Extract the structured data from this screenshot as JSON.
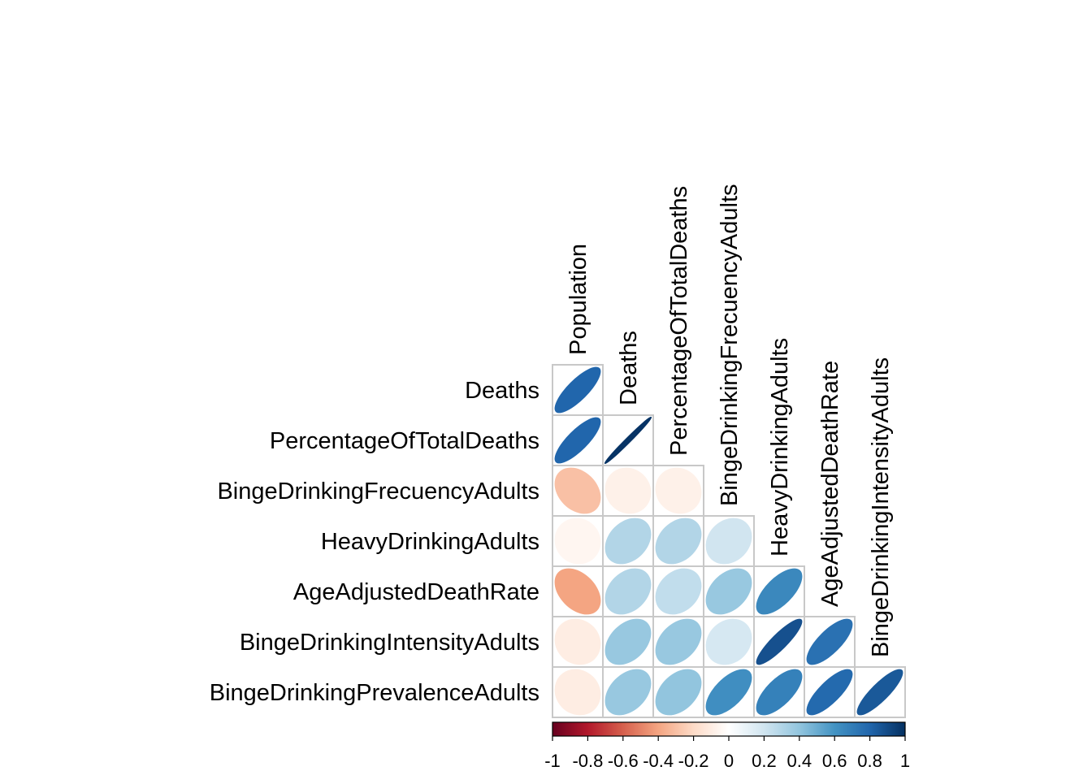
{
  "chart_data": {
    "type": "heatmap",
    "style": "correlation-ellipse-lower-triangle",
    "variables": [
      "Population",
      "Deaths",
      "PercentageOfTotalDeaths",
      "BingeDrinkingFrecuencyAdults",
      "HeavyDrinkingAdults",
      "AgeAdjustedDeathRate",
      "BingeDrinkingIntensityAdults",
      "BingeDrinkingPrevalenceAdults"
    ],
    "row_labels": [
      "Deaths",
      "PercentageOfTotalDeaths",
      "BingeDrinkingFrecuencyAdults",
      "HeavyDrinkingAdults",
      "AgeAdjustedDeathRate",
      "BingeDrinkingIntensityAdults",
      "BingeDrinkingPrevalenceAdults"
    ],
    "col_labels": [
      "Population",
      "Deaths",
      "PercentageOfTotalDeaths",
      "BingeDrinkingFrecuencyAdults",
      "HeavyDrinkingAdults",
      "AgeAdjustedDeathRate",
      "BingeDrinkingIntensityAdults"
    ],
    "matrix": [
      [
        0.8
      ],
      [
        0.8,
        0.99
      ],
      [
        -0.3,
        -0.08,
        -0.08
      ],
      [
        -0.05,
        0.3,
        0.3,
        0.2
      ],
      [
        -0.4,
        0.3,
        0.25,
        0.38,
        0.65
      ],
      [
        -0.1,
        0.38,
        0.38,
        0.18,
        0.88,
        0.75
      ],
      [
        -0.1,
        0.38,
        0.4,
        0.62,
        0.68,
        0.78,
        0.85
      ]
    ],
    "colorbar": {
      "range": [
        -1,
        1
      ],
      "tick_labels": [
        "-1",
        "-0.8",
        "-0.6",
        "-0.4",
        "-0.2",
        "0",
        "0.2",
        "0.4",
        "0.6",
        "0.8",
        "1"
      ],
      "tick_values": [
        -1,
        -0.8,
        -0.6,
        -0.4,
        -0.2,
        0,
        0.2,
        0.4,
        0.6,
        0.8,
        1
      ],
      "colors": [
        "#67001F",
        "#B2182B",
        "#D6604D",
        "#F4A582",
        "#FDDBC7",
        "#FFFFFF",
        "#D1E5F0",
        "#92C5DE",
        "#4393C3",
        "#2166AC",
        "#053061"
      ]
    },
    "grid_color": "#c8c8c8"
  }
}
